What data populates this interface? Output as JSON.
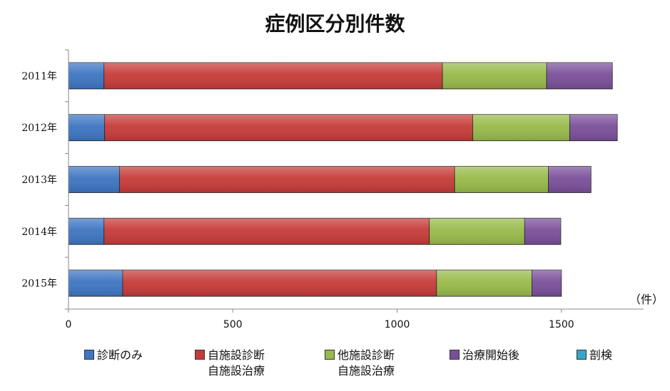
{
  "chart_data": {
    "type": "bar",
    "orientation": "horizontal",
    "stacked": true,
    "title": "症例区分別件数",
    "unit_label": "（件）",
    "categories": [
      "2011年",
      "2012年",
      "2013年",
      "2014年",
      "2015年"
    ],
    "xlim": [
      0,
      1750
    ],
    "x_ticks": [
      0,
      500,
      1000,
      1500
    ],
    "grid": false,
    "legend_position": "bottom",
    "series": [
      {
        "name": "診断のみ",
        "name_line2": "",
        "color": "#3d75c2",
        "values": [
          108,
          110,
          155,
          108,
          165
        ]
      },
      {
        "name": "自施設診断",
        "name_line2": "自施設治療",
        "color": "#c63b38",
        "values": [
          1030,
          1120,
          1020,
          990,
          955
        ]
      },
      {
        "name": "他施設診断",
        "name_line2": "自施設治療",
        "color": "#98ba4a",
        "values": [
          317,
          295,
          285,
          290,
          290
        ]
      },
      {
        "name": "治療開始後",
        "name_line2": "",
        "color": "#7a4f9a",
        "values": [
          200,
          145,
          130,
          110,
          90
        ]
      },
      {
        "name": "剖検",
        "name_line2": "",
        "color": "#35a7c6",
        "values": [
          0,
          0,
          0,
          0,
          0
        ]
      }
    ]
  }
}
